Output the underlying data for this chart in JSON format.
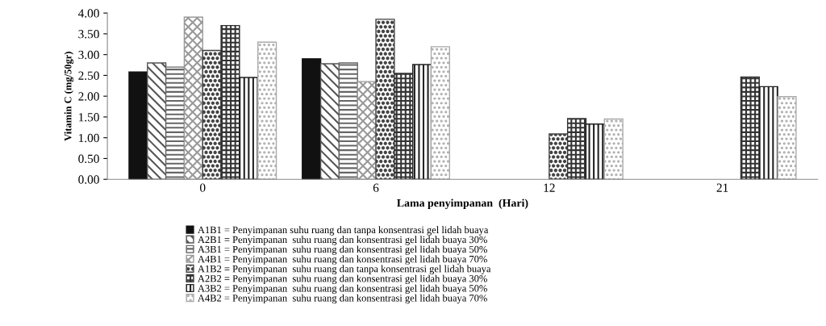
{
  "chart_data": {
    "type": "bar",
    "xlabel": "Lama penyimpanan  (Hari)",
    "ylabel": "Vitamin C (mg/50gr)",
    "categories": [
      "0",
      "6",
      "12",
      "21"
    ],
    "series": [
      {
        "name": "A1B1 = Penyimpanan suhu ruang dan tanpa konsentrasi gel lidah buaya",
        "color": "#111111",
        "values": [
          2.58,
          2.9,
          null,
          null
        ]
      },
      {
        "name": "A2B1 = Penyimpanan  suhu ruang dan konsentrasi gel lidah buaya 30%",
        "color": "#555555",
        "values": [
          2.8,
          2.78,
          null,
          null
        ]
      },
      {
        "name": "A3B1 = Penyimpanan  suhu ruang dan konsentrasi gel lidah buaya 50%",
        "color": "#666666",
        "values": [
          2.7,
          2.8,
          null,
          null
        ]
      },
      {
        "name": "A4B1 = Penyimpanan  suhu ruang dan konsentrasi gel lidah buaya 70%",
        "color": "#999999",
        "values": [
          3.9,
          2.35,
          null,
          null
        ]
      },
      {
        "name": "A1B2 = Penyimpanan  suhu ruang dan tanpa konsentrasi gel lidah buaya",
        "color": "#444444",
        "values": [
          3.1,
          3.85,
          1.09,
          null
        ]
      },
      {
        "name": "A2B2 = Penyimpanan  suhu ruang dan konsentrasi gel lidah buaya 30%",
        "color": "#333333",
        "values": [
          3.7,
          2.55,
          1.46,
          2.46
        ]
      },
      {
        "name": "A3B2 = Penyimpanan  suhu ruang dan konsentrasi gel lidah buaya 50%",
        "color": "#222222",
        "values": [
          2.45,
          2.76,
          1.33,
          2.23
        ]
      },
      {
        "name": "A4B2 = Penyimpanan  suhu ruang dan konsentrasi gel lidah buaya 70%",
        "color": "#aaaaaa",
        "values": [
          3.3,
          3.19,
          1.45,
          1.99
        ]
      }
    ],
    "ylim": [
      0,
      4
    ],
    "yticks": [
      {
        "value": 0,
        "label": "0.00"
      },
      {
        "value": 0.5,
        "label": "0.50"
      },
      {
        "value": 1,
        "label": "1.00"
      },
      {
        "value": 1.5,
        "label": "1.50"
      },
      {
        "value": 2,
        "label": "2.00"
      },
      {
        "value": 2.5,
        "label": "2.50"
      },
      {
        "value": 3,
        "label": "3.00"
      },
      {
        "value": 3.5,
        "label": "3.50"
      },
      {
        "value": 4,
        "label": "4.00"
      }
    ],
    "legend": "bottom",
    "grid": false
  }
}
